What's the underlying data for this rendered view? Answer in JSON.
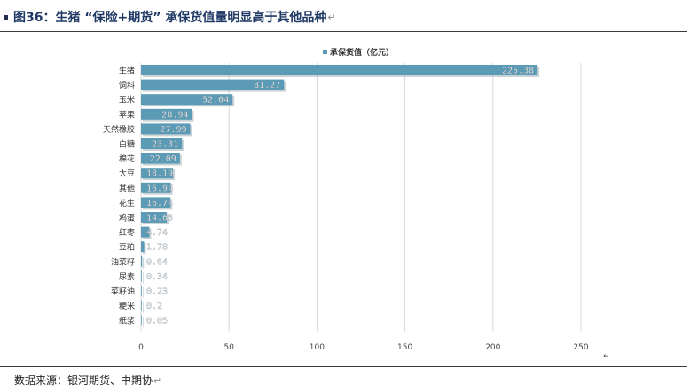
{
  "header": {
    "title": "图36：生猪 “保险+期货” 承保货值量明显高于其他品种",
    "return_mark": "↵"
  },
  "footer": {
    "source": "数据来源：银河期货、中期协",
    "return_mark": "↵"
  },
  "colors": {
    "bar": "#5b9bb5",
    "grid": "#d9d9d9",
    "title": "#1f3864"
  },
  "chart_data": {
    "type": "bar",
    "orientation": "horizontal",
    "legend": "top-center",
    "grid": true,
    "xlim": [
      0,
      250
    ],
    "xticks": [
      0,
      50,
      100,
      150,
      200,
      250
    ],
    "categories": [
      "生猪",
      "饲料",
      "玉米",
      "苹果",
      "天然橡胶",
      "白糖",
      "棉花",
      "大豆",
      "其他",
      "花生",
      "鸡蛋",
      "红枣",
      "豆粕",
      "油菜籽",
      "尿素",
      "菜籽油",
      "粳米",
      "纸浆"
    ],
    "series": [
      {
        "name": "承保货值（亿元）",
        "values": [
          225.38,
          81.27,
          52.04,
          28.94,
          27.99,
          23.31,
          22.09,
          18.19,
          16.94,
          16.74,
          14.63,
          4.74,
          1.78,
          0.64,
          0.34,
          0.23,
          0.2,
          0.05
        ]
      }
    ],
    "value_labels": [
      "225.38",
      "81.27",
      "52.04",
      "28.94",
      "27.99",
      "23.31",
      "22.09",
      "18.19",
      "16.94",
      "16.74",
      "14.63",
      "4.74",
      "1.78",
      "0.64",
      "0.34",
      "0.23",
      "0.2",
      "0.05"
    ],
    "axis_end_mark": "↵"
  }
}
